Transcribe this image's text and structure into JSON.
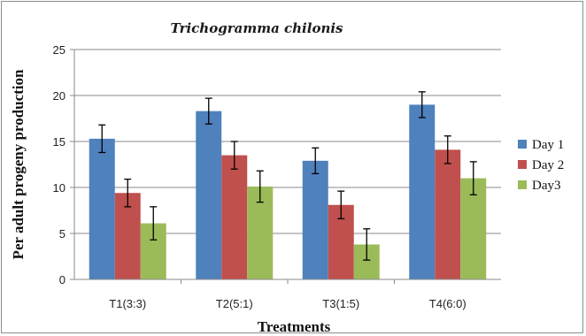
{
  "chart_data": {
    "type": "bar",
    "title": "Trichogramma chilonis",
    "xlabel": "Treatments",
    "ylabel": "Per adult progeny production",
    "categories": [
      "T1(3:3)",
      "T2(5:1)",
      "T3(1:5)",
      "T4(6:0)"
    ],
    "ylim": [
      0,
      25
    ],
    "yticks": [
      0,
      5,
      10,
      15,
      20,
      25
    ],
    "grid": true,
    "legend_position": "right",
    "series": [
      {
        "name": "Day 1",
        "color": "#4f81bd",
        "values": [
          15.3,
          18.3,
          12.9,
          19.0
        ],
        "errors": [
          1.5,
          1.4,
          1.4,
          1.4
        ]
      },
      {
        "name": "Day 2",
        "color": "#c0504d",
        "values": [
          9.4,
          13.5,
          8.1,
          14.1
        ],
        "errors": [
          1.5,
          1.5,
          1.5,
          1.5
        ]
      },
      {
        "name": "Day3",
        "color": "#9bbb59",
        "values": [
          6.1,
          10.1,
          3.8,
          11.0
        ],
        "errors": [
          1.8,
          1.7,
          1.7,
          1.8
        ]
      }
    ]
  }
}
